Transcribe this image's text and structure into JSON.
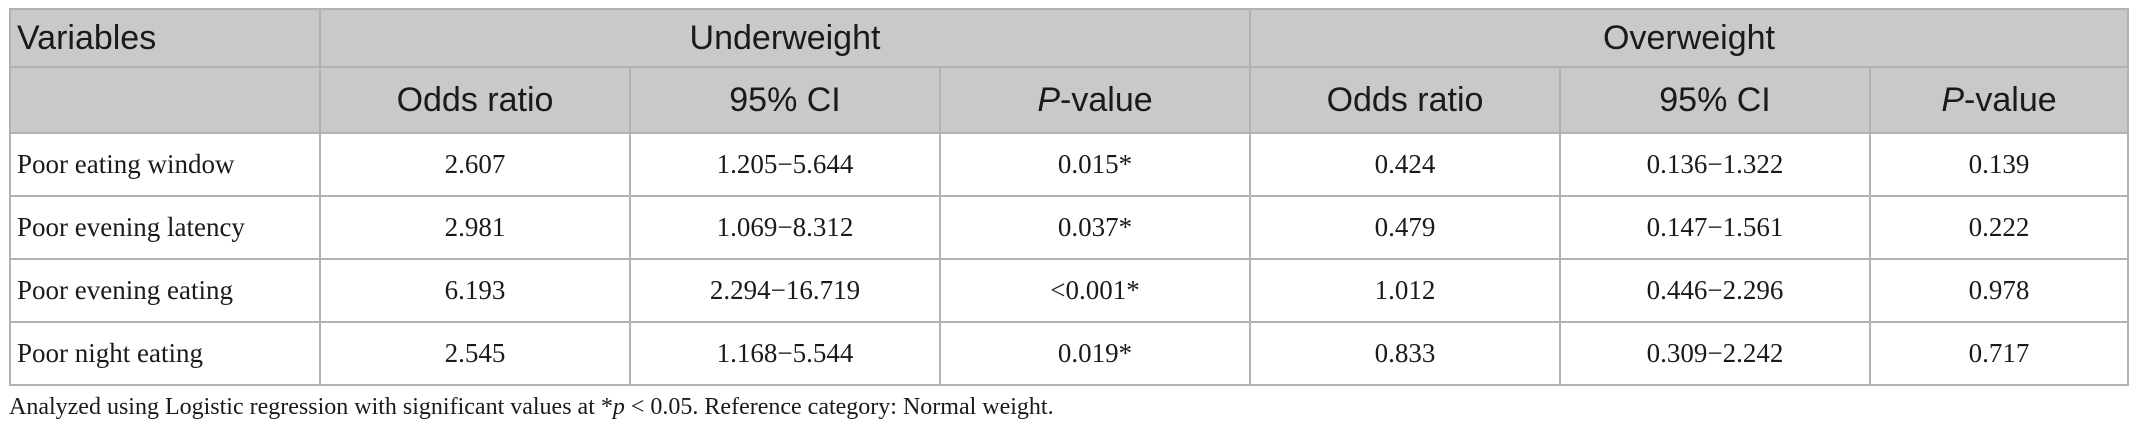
{
  "header": {
    "variables": "Variables",
    "group_underweight": "Underweight",
    "group_overweight": "Overweight",
    "col_odds_ratio": "Odds ratio",
    "col_ci": "95% CI",
    "col_p_italic": "P",
    "col_p_rest": "-value"
  },
  "rows": [
    {
      "label": "Poor eating window",
      "u_or": "2.607",
      "u_ci": "1.205−5.644",
      "u_p": "0.015*",
      "o_or": "0.424",
      "o_ci": "0.136−1.322",
      "o_p": "0.139"
    },
    {
      "label": "Poor evening latency",
      "u_or": "2.981",
      "u_ci": "1.069−8.312",
      "u_p": "0.037*",
      "o_or": "0.479",
      "o_ci": "0.147−1.561",
      "o_p": "0.222"
    },
    {
      "label": "Poor evening eating",
      "u_or": "6.193",
      "u_ci": "2.294−16.719",
      "u_p": "<0.001*",
      "o_or": "1.012",
      "o_ci": "0.446−2.296",
      "o_p": "0.978"
    },
    {
      "label": "Poor night eating",
      "u_or": "2.545",
      "u_ci": "1.168−5.544",
      "u_p": "0.019*",
      "o_or": "0.833",
      "o_ci": "0.309−2.242",
      "o_p": "0.717"
    }
  ],
  "footnote": {
    "part1": "Analyzed using Logistic regression with significant values at *",
    "p": "p",
    "part2": " < 0.05. Reference category: Normal weight."
  }
}
